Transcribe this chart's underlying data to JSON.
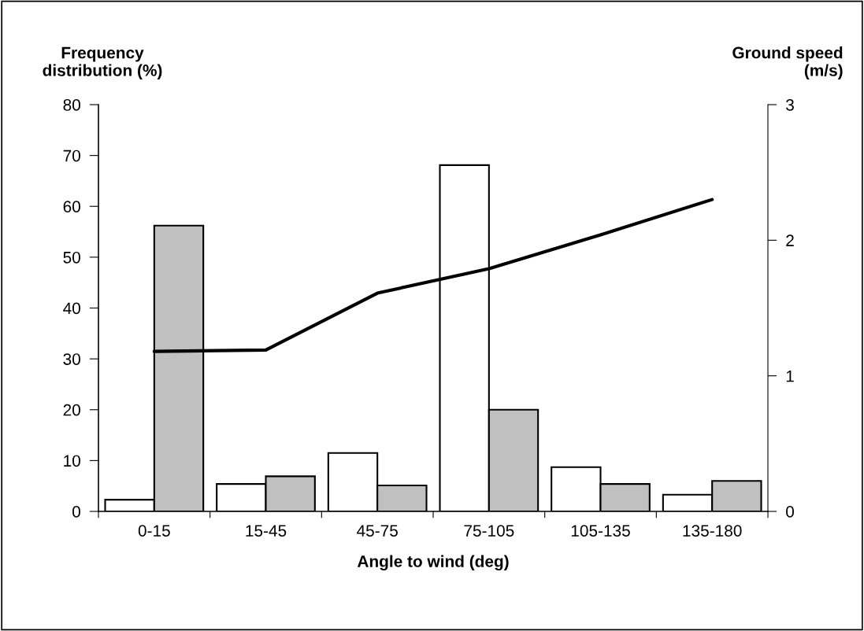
{
  "chart_data": {
    "type": "bar",
    "xlabel": "Angle to wind (deg)",
    "ylabel": "Frequency\ndistribution (%)",
    "y2label": "Ground speed\n(m/s)",
    "categories": [
      "0-15",
      "15-45",
      "45-75",
      "75-105",
      "105-135",
      "135-180"
    ],
    "series": [
      {
        "color": "#ffffff",
        "values": [
          2.3,
          5.4,
          11.5,
          68.1,
          8.7,
          3.3
        ]
      },
      {
        "color": "#c0c0c0",
        "values": [
          56.2,
          6.9,
          5.1,
          20.0,
          5.4,
          6.0
        ]
      },
      {
        "type": "line",
        "axis": "y2",
        "color": "#000000",
        "values": [
          1.18,
          1.19,
          1.61,
          1.79,
          2.04,
          2.3
        ]
      }
    ],
    "ylim": [
      0,
      80
    ],
    "yticks": [
      0,
      10,
      20,
      30,
      40,
      50,
      60,
      70,
      80
    ],
    "y2lim": [
      0,
      3
    ],
    "y2ticks": [
      0,
      1,
      2,
      3
    ],
    "grid": false,
    "marker": "none",
    "line_style": "solid"
  }
}
